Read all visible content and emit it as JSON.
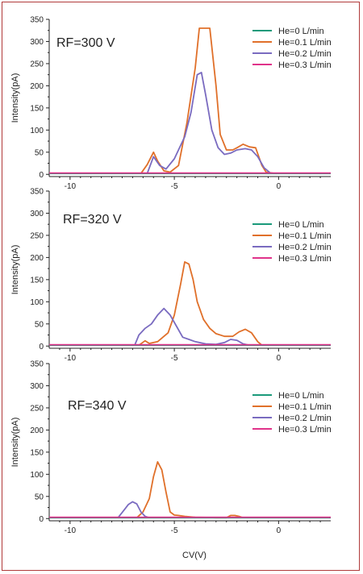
{
  "xlabel": "CV(V)",
  "ylabel": "Intensity(pA)",
  "legend": [
    "He=0 L/min",
    "He=0.1 L/min",
    "He=0.2 L/min",
    "He=0.3 L/min"
  ],
  "colors": {
    "He=0 L/min": "#1a9a7a",
    "He=0.1 L/min": "#e0702a",
    "He=0.2 L/min": "#7a6bc0",
    "He=0.3 L/min": "#e0338a"
  },
  "chart_data": [
    {
      "type": "line",
      "title": "RF=300 V",
      "xlabel": "",
      "ylabel": "Intensity(pA)",
      "xlim": [
        -11,
        2.5
      ],
      "ylim": [
        -5,
        350
      ],
      "x_ticks": [
        -10,
        -5,
        0
      ],
      "y_ticks": [
        0,
        50,
        100,
        150,
        200,
        250,
        300,
        350
      ],
      "legend_position": "top-right",
      "series": [
        {
          "name": "He=0 L/min",
          "x": [
            -11,
            2.5
          ],
          "y": [
            2,
            2
          ]
        },
        {
          "name": "He=0.1 L/min",
          "x": [
            -6.6,
            -6.3,
            -6.0,
            -5.8,
            -5.5,
            -5.2,
            -4.8,
            -4.4,
            -4.0,
            -3.8,
            -3.6,
            -3.3,
            -3.0,
            -2.8,
            -2.5,
            -2.2,
            -2.0,
            -1.7,
            -1.4,
            -1.1,
            -0.8,
            -0.6,
            -0.2
          ],
          "y": [
            2,
            22,
            50,
            30,
            8,
            5,
            20,
            115,
            240,
            330,
            330,
            330,
            200,
            90,
            55,
            55,
            60,
            68,
            62,
            60,
            20,
            5,
            2
          ]
        },
        {
          "name": "He=0.2 L/min",
          "x": [
            -6.3,
            -6.0,
            -5.7,
            -5.4,
            -5.0,
            -4.5,
            -4.2,
            -3.9,
            -3.7,
            -3.5,
            -3.2,
            -2.9,
            -2.6,
            -2.3,
            -2.0,
            -1.6,
            -1.3,
            -1.0,
            -0.7,
            -0.4,
            -0.1
          ],
          "y": [
            2,
            40,
            20,
            12,
            35,
            85,
            140,
            225,
            230,
            180,
            100,
            60,
            45,
            48,
            55,
            58,
            55,
            40,
            15,
            3,
            2
          ]
        },
        {
          "name": "He=0.3 L/min",
          "x": [
            -11,
            2.5
          ],
          "y": [
            3,
            3
          ]
        }
      ]
    },
    {
      "type": "line",
      "title": "RF=320 V",
      "xlabel": "",
      "ylabel": "Intensity(pA)",
      "xlim": [
        -11,
        2.5
      ],
      "ylim": [
        -5,
        350
      ],
      "x_ticks": [
        -10,
        -5,
        0
      ],
      "y_ticks": [
        0,
        50,
        100,
        150,
        200,
        250,
        300,
        350
      ],
      "legend_position": "top-right",
      "series": [
        {
          "name": "He=0 L/min",
          "x": [
            -11,
            2.5
          ],
          "y": [
            2,
            2
          ]
        },
        {
          "name": "He=0.1 L/min",
          "x": [
            -6.7,
            -6.4,
            -6.2,
            -5.8,
            -5.3,
            -5.0,
            -4.7,
            -4.5,
            -4.3,
            -4.1,
            -3.9,
            -3.6,
            -3.3,
            -3.0,
            -2.6,
            -2.2,
            -1.9,
            -1.6,
            -1.3,
            -1.0,
            -0.8
          ],
          "y": [
            2,
            12,
            6,
            10,
            30,
            70,
            140,
            190,
            185,
            150,
            100,
            60,
            40,
            28,
            22,
            22,
            32,
            38,
            30,
            10,
            2
          ]
        },
        {
          "name": "He=0.2 L/min",
          "x": [
            -6.9,
            -6.7,
            -6.4,
            -6.1,
            -5.8,
            -5.5,
            -5.2,
            -4.9,
            -4.6,
            -4.3,
            -4.0,
            -3.5,
            -3.0,
            -2.6,
            -2.3,
            -2.0,
            -1.7,
            -1.4
          ],
          "y": [
            2,
            25,
            40,
            50,
            70,
            85,
            70,
            45,
            20,
            15,
            10,
            5,
            4,
            8,
            15,
            13,
            5,
            2
          ]
        },
        {
          "name": "He=0.3 L/min",
          "x": [
            -11,
            2.5
          ],
          "y": [
            3,
            3
          ]
        }
      ]
    },
    {
      "type": "line",
      "title": "RF=340 V",
      "xlabel": "CV(V)",
      "ylabel": "Intensity(pA)",
      "xlim": [
        -11,
        2.5
      ],
      "ylim": [
        -5,
        350
      ],
      "x_ticks": [
        -10,
        -5,
        0
      ],
      "y_ticks": [
        0,
        50,
        100,
        150,
        200,
        250,
        300,
        350
      ],
      "legend_position": "top-right",
      "series": [
        {
          "name": "He=0 L/min",
          "x": [
            -11,
            2.5
          ],
          "y": [
            2,
            2
          ]
        },
        {
          "name": "He=0.1 L/min",
          "x": [
            -6.8,
            -6.5,
            -6.2,
            -6.0,
            -5.8,
            -5.6,
            -5.4,
            -5.2,
            -5.0,
            -4.8,
            -4.5,
            -4.0,
            -3.0,
            -2.5,
            -2.3,
            -2.1,
            -1.9,
            -1.7
          ],
          "y": [
            2,
            15,
            45,
            95,
            128,
            110,
            60,
            15,
            8,
            7,
            5,
            3,
            2,
            2,
            7,
            7,
            5,
            2
          ]
        },
        {
          "name": "He=0.2 L/min",
          "x": [
            -7.7,
            -7.4,
            -7.2,
            -7.0,
            -6.8,
            -6.6,
            -6.4,
            -6.2
          ],
          "y": [
            2,
            20,
            32,
            38,
            33,
            15,
            5,
            2
          ]
        },
        {
          "name": "He=0.3 L/min",
          "x": [
            -11,
            2.5
          ],
          "y": [
            3,
            3
          ]
        }
      ]
    }
  ]
}
